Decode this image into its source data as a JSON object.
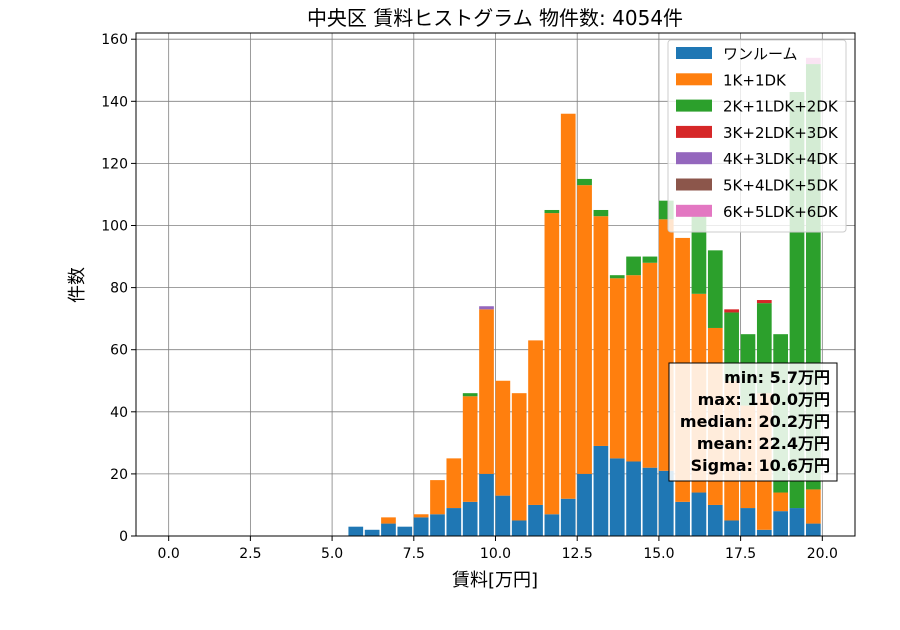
{
  "chart_data": {
    "type": "bar",
    "title": "中央区 賃料ヒストグラム  物件数: 4054件",
    "xlabel": "賃料[万円]",
    "ylabel": "件数",
    "xlim": [
      -1.0,
      21.0
    ],
    "ylim": [
      0,
      162
    ],
    "bin_width": 0.5,
    "x_ticks": [
      0.0,
      2.5,
      5.0,
      7.5,
      10.0,
      12.5,
      15.0,
      17.5,
      20.0
    ],
    "x_tick_labels": [
      "0.0",
      "2.5",
      "5.0",
      "7.5",
      "10.0",
      "12.5",
      "15.0",
      "17.5",
      "20.0"
    ],
    "y_ticks": [
      0,
      20,
      40,
      60,
      80,
      100,
      120,
      140,
      160
    ],
    "y_tick_labels": [
      "0",
      "20",
      "40",
      "60",
      "80",
      "100",
      "120",
      "140",
      "160"
    ],
    "grid": true,
    "legend_position": "top-right",
    "stacked": true,
    "x": [
      5.5,
      6.0,
      6.5,
      7.0,
      7.5,
      8.0,
      8.5,
      9.0,
      9.5,
      10.0,
      10.5,
      11.0,
      11.5,
      12.0,
      12.5,
      13.0,
      13.5,
      14.0,
      14.5,
      15.0,
      15.5,
      16.0,
      16.5,
      17.0,
      17.5,
      18.0,
      18.5,
      19.0,
      19.5
    ],
    "series": [
      {
        "name": "ワンルーム",
        "color": "#1f77b4",
        "values": [
          3,
          2,
          4,
          3,
          6,
          7,
          9,
          11,
          20,
          13,
          5,
          10,
          7,
          12,
          20,
          29,
          25,
          24,
          22,
          21,
          11,
          14,
          10,
          5,
          9,
          2,
          8,
          9,
          4
        ]
      },
      {
        "name": "1K+1DK",
        "color": "#ff7f0e",
        "values": [
          0,
          0,
          2,
          0,
          1,
          11,
          16,
          34,
          53,
          37,
          41,
          53,
          97,
          124,
          93,
          74,
          58,
          60,
          66,
          81,
          85,
          64,
          57,
          45,
          33,
          44,
          6,
          0,
          11
        ]
      },
      {
        "name": "2K+1LDK+2DK",
        "color": "#2ca02c",
        "values": [
          0,
          0,
          0,
          0,
          0,
          0,
          0,
          1,
          0,
          0,
          0,
          0,
          1,
          0,
          2,
          2,
          1,
          6,
          2,
          6,
          0,
          26,
          25,
          22,
          23,
          29,
          51,
          134,
          137
        ]
      },
      {
        "name": "3K+2LDK+3DK",
        "color": "#d62728",
        "values": [
          0,
          0,
          0,
          0,
          0,
          0,
          0,
          0,
          0,
          0,
          0,
          0,
          0,
          0,
          0,
          0,
          0,
          0,
          0,
          0,
          0,
          0,
          0,
          1,
          0,
          1,
          0,
          0,
          0
        ]
      },
      {
        "name": "4K+3LDK+4DK",
        "color": "#9467bd",
        "values": [
          0,
          0,
          0,
          0,
          0,
          0,
          0,
          0,
          1,
          0,
          0,
          0,
          0,
          0,
          0,
          0,
          0,
          0,
          0,
          0,
          0,
          0,
          0,
          0,
          0,
          0,
          0,
          0,
          0
        ]
      },
      {
        "name": "5K+4LDK+5DK",
        "color": "#8c564b",
        "values": [
          0,
          0,
          0,
          0,
          0,
          0,
          0,
          0,
          0,
          0,
          0,
          0,
          0,
          0,
          0,
          0,
          0,
          0,
          0,
          0,
          0,
          0,
          0,
          0,
          0,
          0,
          0,
          0,
          0
        ]
      },
      {
        "name": "6K+5LDK+6DK",
        "color": "#e377c2",
        "values": [
          0,
          0,
          0,
          0,
          0,
          0,
          0,
          0,
          0,
          0,
          0,
          0,
          0,
          0,
          0,
          0,
          0,
          0,
          0,
          0,
          0,
          0,
          0,
          0,
          0,
          0,
          0,
          0,
          2
        ]
      }
    ],
    "stats_box": [
      "min: 5.7万円",
      "max: 110.0万円",
      "median: 20.2万円",
      "mean: 22.4万円",
      "Sigma: 10.6万円"
    ]
  }
}
